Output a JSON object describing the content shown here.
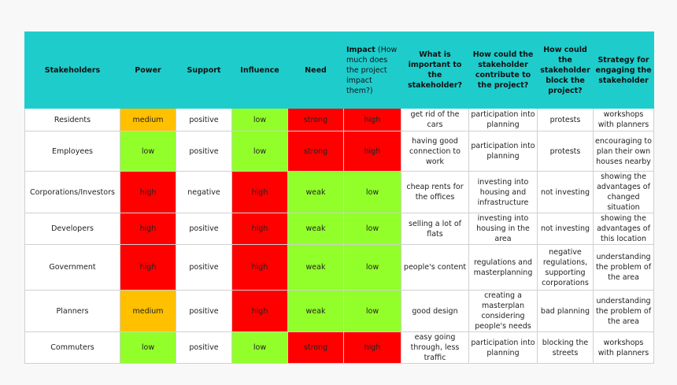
{
  "header": {
    "stakeholders": "Stakeholders",
    "power": "Power",
    "support": "Support",
    "influence": "Influence",
    "need": "Need",
    "impact_bold": "Impact",
    "impact_rest": "(How much does the project impact them?)",
    "important": "What is important to the stakeholder?",
    "contribute": "How could the stakeholder contribute to the project?",
    "block": "How could the stakeholder block the project?",
    "strategy": "Strategy for engaging the stakeholder"
  },
  "rows": [
    {
      "name": "Residents",
      "power": "medium",
      "support": "positive",
      "influence": "low",
      "need": "strong",
      "impact": "high",
      "important": "get rid of the cars",
      "contribute": "participation into planning",
      "block": "protests",
      "strategy": "workshops with planners"
    },
    {
      "name": "Employees",
      "power": "low",
      "support": "positive",
      "influence": "low",
      "need": "strong",
      "impact": "high",
      "important": "having good connection to work",
      "contribute": "participation into planning",
      "block": "protests",
      "strategy": "encouraging to plan their own houses nearby"
    },
    {
      "name": "Corporations/Investors",
      "power": "high",
      "support": "negative",
      "influence": "high",
      "need": "weak",
      "impact": "low",
      "important": "cheap rents for the offices",
      "contribute": "investing into housing and infrastructure",
      "block": "not investing",
      "strategy": "showing the advantages of changed situation"
    },
    {
      "name": "Developers",
      "power": "high",
      "support": "positive",
      "influence": "high",
      "need": "weak",
      "impact": "low",
      "important": "selling a lot of flats",
      "contribute": "investing into housing in the area",
      "block": "not investing",
      "strategy": "showing the advantages of this location"
    },
    {
      "name": "Government",
      "power": "high",
      "support": "positive",
      "influence": "high",
      "need": "weak",
      "impact": "low",
      "important": "people's content",
      "contribute": "regulations and masterplanning",
      "block": "negative regulations, supporting corporations",
      "strategy": "understanding the problem of the area"
    },
    {
      "name": "Planners",
      "power": "medium",
      "support": "positive",
      "influence": "high",
      "need": "weak",
      "impact": "low",
      "important": "good design",
      "contribute": "creating a masterplan considering people's needs",
      "block": "bad planning",
      "strategy": "understanding the problem of the area"
    },
    {
      "name": "Commuters",
      "power": "low",
      "support": "positive",
      "influence": "low",
      "need": "strong",
      "impact": "high",
      "important": "easy going through, less traffic",
      "contribute": "participation into planning",
      "block": "blocking the streets",
      "strategy": "workshops with planners"
    }
  ],
  "colors": {
    "header": "#1fcccc",
    "high": "#ff0000",
    "medium": "#ffc000",
    "low": "#92ff2b",
    "strong": "#ff0000",
    "weak": "#92ff2b"
  }
}
